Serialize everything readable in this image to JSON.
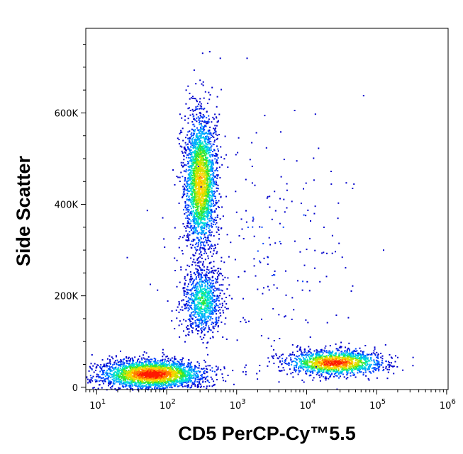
{
  "chart_data": {
    "type": "heatmap",
    "subtype": "flow-cytometry-density-dot-plot",
    "title": "",
    "xlabel": "CD5 PerCP-Cy™5.5",
    "ylabel": "Side Scatter",
    "x_scale": "log",
    "y_scale": "linear",
    "xlim": [
      7,
      1050000
    ],
    "ylim": [
      -5000,
      785000
    ],
    "x_ticks": [
      {
        "value": 10,
        "base": "10",
        "exp": "1"
      },
      {
        "value": 100,
        "base": "10",
        "exp": "2"
      },
      {
        "value": 1000,
        "base": "10",
        "exp": "3"
      },
      {
        "value": 10000,
        "base": "10",
        "exp": "4"
      },
      {
        "value": 100000,
        "base": "10",
        "exp": "5"
      },
      {
        "value": 1000000,
        "base": "10",
        "exp": "6"
      }
    ],
    "y_ticks": [
      {
        "value": 0,
        "label": "0"
      },
      {
        "value": 200000,
        "label": "200K"
      },
      {
        "value": 400000,
        "label": "400K"
      },
      {
        "value": 600000,
        "label": "600K"
      }
    ],
    "grid": false,
    "legend": "none",
    "colormap": [
      "#0000cc",
      "#0044ff",
      "#00aaff",
      "#00e6cc",
      "#33e633",
      "#bfe600",
      "#ffd400",
      "#ff7a00",
      "#ff1a00"
    ],
    "populations": [
      {
        "cx": 60,
        "cy": 30000,
        "sx_log10": 0.38,
        "sy": 16000,
        "n": 2600,
        "peak": 1.0
      },
      {
        "cx": 300,
        "cy": 450000,
        "sx_log10": 0.12,
        "sy": 75000,
        "n": 2400,
        "peak": 0.75
      },
      {
        "cx": 320,
        "cy": 190000,
        "sx_log10": 0.14,
        "sy": 38000,
        "n": 900,
        "peak": 0.45
      },
      {
        "cx": 25000,
        "cy": 55000,
        "sx_log10": 0.35,
        "sy": 14000,
        "n": 1500,
        "peak": 0.95
      },
      {
        "cx": 3000,
        "cy": 300000,
        "sx_log10": 0.7,
        "sy": 150000,
        "n": 220,
        "peak": 0.08
      }
    ]
  }
}
